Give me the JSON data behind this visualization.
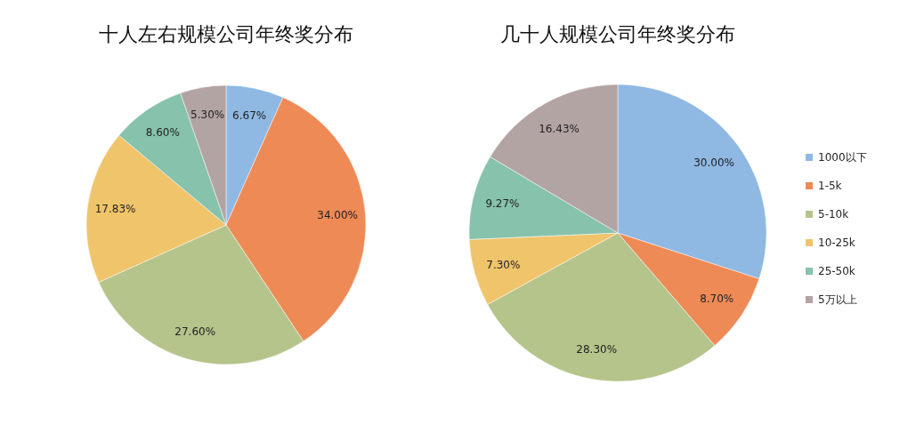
{
  "chart_data": [
    {
      "type": "pie",
      "title": "十人左右规模公司年终奖分布",
      "categories": [
        null,
        null,
        null,
        null,
        null,
        null
      ],
      "values": [
        6.67,
        34.0,
        27.6,
        17.83,
        8.6,
        5.3
      ],
      "value_labels": [
        "6.67%",
        "34.00%",
        "27.60%",
        "17.83%",
        "8.60%",
        "5.30%"
      ],
      "colors": [
        "#8fb8e3",
        "#ee8a56",
        "#b5c48a",
        "#f0c46a",
        "#86c2ac",
        "#b3a4a4"
      ]
    },
    {
      "type": "pie",
      "title": "几十人规模公司年终奖分布",
      "categories": [
        "1000以下",
        "1-5k",
        "5-10k",
        "10-25k",
        "25-50k",
        "5万以上"
      ],
      "values": [
        30.0,
        8.7,
        28.3,
        7.3,
        9.27,
        16.43
      ],
      "value_labels": [
        "30.00%",
        "8.70%",
        "28.30%",
        "7.30%",
        "9.27%",
        "16.43%"
      ],
      "colors": [
        "#8fb8e3",
        "#ee8a56",
        "#b5c48a",
        "#f0c46a",
        "#86c2ac",
        "#b3a4a4"
      ],
      "legend": "right"
    }
  ]
}
